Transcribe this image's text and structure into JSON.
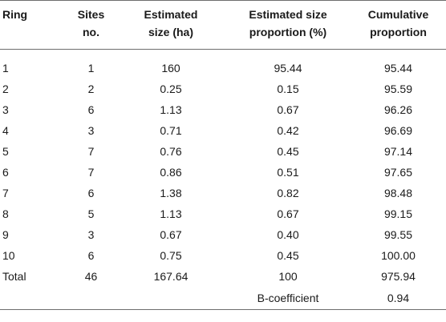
{
  "headers": {
    "ring": "Ring",
    "sites": [
      "Sites",
      "no."
    ],
    "size": [
      "Estimated",
      "size (ha)"
    ],
    "proportion": [
      "Estimated size",
      "proportion (%)"
    ],
    "cumulative": [
      "Cumulative",
      "proportion"
    ]
  },
  "rows": [
    {
      "ring": "1",
      "sites": "1",
      "size": "160",
      "prop": "95.44",
      "cum": "95.44"
    },
    {
      "ring": "2",
      "sites": "2",
      "size": "0.25",
      "prop": "0.15",
      "cum": "95.59"
    },
    {
      "ring": "3",
      "sites": "6",
      "size": "1.13",
      "prop": "0.67",
      "cum": "96.26"
    },
    {
      "ring": "4",
      "sites": "3",
      "size": "0.71",
      "prop": "0.42",
      "cum": "96.69"
    },
    {
      "ring": "5",
      "sites": "7",
      "size": "0.76",
      "prop": "0.45",
      "cum": "97.14"
    },
    {
      "ring": "6",
      "sites": "7",
      "size": "0.86",
      "prop": "0.51",
      "cum": "97.65"
    },
    {
      "ring": "7",
      "sites": "6",
      "size": "1.38",
      "prop": "0.82",
      "cum": "98.48"
    },
    {
      "ring": "8",
      "sites": "5",
      "size": "1.13",
      "prop": "0.67",
      "cum": "99.15"
    },
    {
      "ring": "9",
      "sites": "3",
      "size": "0.67",
      "prop": "0.40",
      "cum": "99.55"
    },
    {
      "ring": "10",
      "sites": "6",
      "size": "0.75",
      "prop": "0.45",
      "cum": "100.00"
    }
  ],
  "total": {
    "label": "Total",
    "sites": "46",
    "size": "167.64",
    "prop": "100",
    "cum": "975.94"
  },
  "bcoef": {
    "label": "B-coefficient",
    "value": "0.94"
  }
}
